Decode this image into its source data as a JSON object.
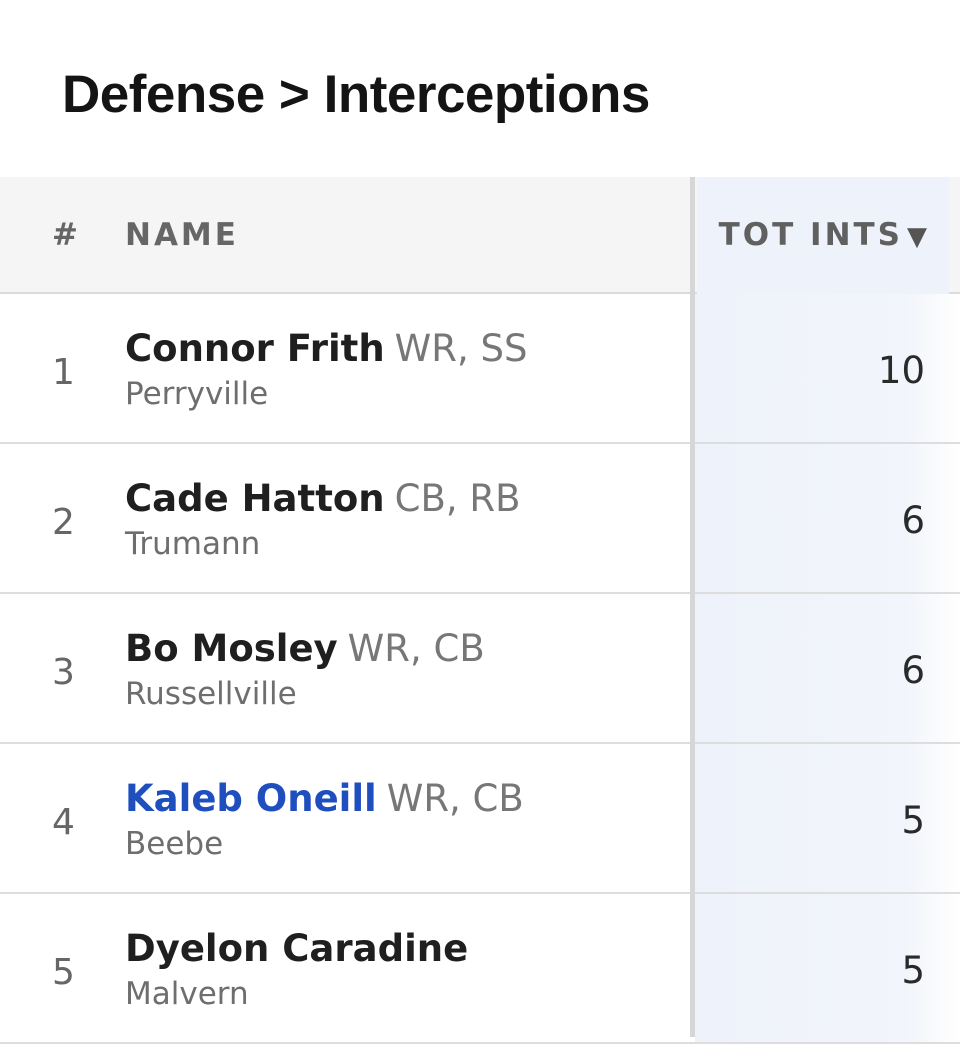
{
  "page": {
    "title": "Defense > Interceptions"
  },
  "table": {
    "columns": {
      "rank": "#",
      "name": "NAME",
      "stat": "TOT INTS",
      "sort_indicator": "▼"
    },
    "rows": [
      {
        "rank": "1",
        "name": "Connor Frith",
        "positions": "WR, SS",
        "school": "Perryville",
        "tot_ints": "10"
      },
      {
        "rank": "2",
        "name": "Cade Hatton",
        "positions": "CB, RB",
        "school": "Trumann",
        "tot_ints": "6"
      },
      {
        "rank": "3",
        "name": "Bo Mosley",
        "positions": "WR, CB",
        "school": "Russellville",
        "tot_ints": "6"
      },
      {
        "rank": "4",
        "name": "Kaleb Oneill",
        "positions": "WR, CB",
        "school": "Beebe",
        "tot_ints": "5"
      },
      {
        "rank": "5",
        "name": "Dyelon Caradine",
        "positions": "",
        "school": "Malvern",
        "tot_ints": "5"
      }
    ]
  },
  "colors": {
    "link": "#1f4fbf",
    "stat_column_bg": "#eef2fa",
    "header_bg": "#f5f5f5"
  }
}
